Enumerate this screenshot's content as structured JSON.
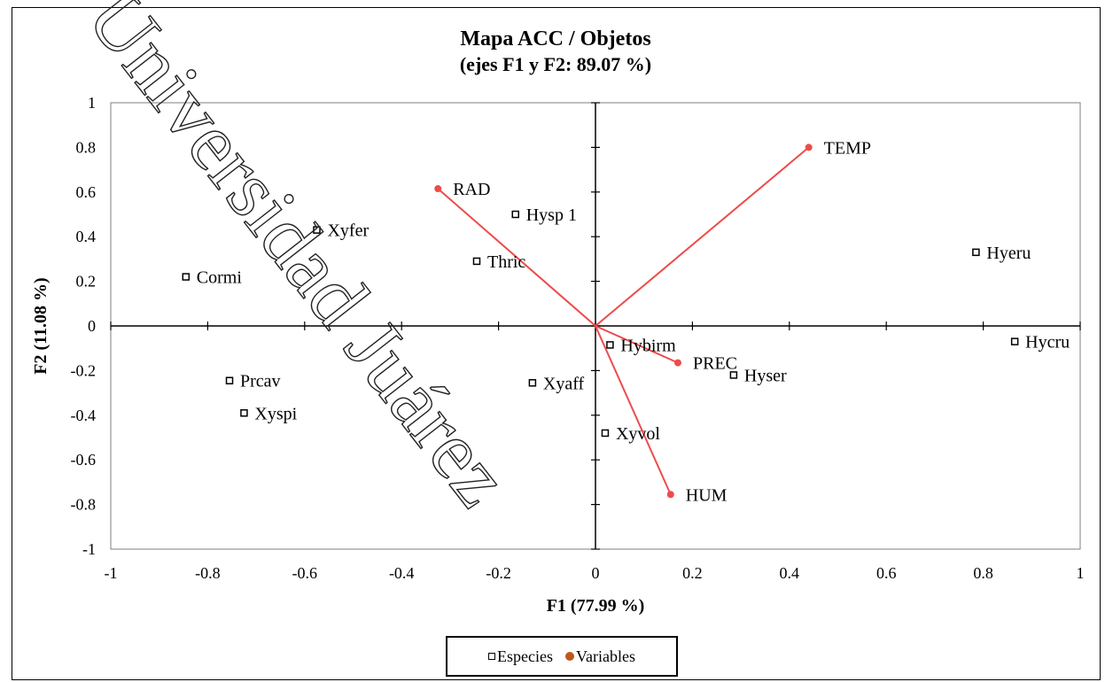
{
  "watermark": "Universidad Juárez",
  "chart_data": {
    "type": "scatter",
    "title": "Mapa ACC / Objetos",
    "subtitle": "(ejes F1 y F2: 89.07 %)",
    "xlabel": "F1 (77.99 %)",
    "ylabel": "F2 (11.08 %)",
    "xlim": [
      -1,
      1
    ],
    "ylim": [
      -1,
      1
    ],
    "x_ticks": [
      "-1",
      "-0.8",
      "-0.6",
      "-0.4",
      "-0.2",
      "0",
      "0.2",
      "0.4",
      "0.6",
      "0.8",
      "1"
    ],
    "y_ticks": [
      "1",
      "0.8",
      "0.6",
      "0.4",
      "0.2",
      "0",
      "-0.2",
      "-0.4",
      "-0.6",
      "-0.8",
      "-1"
    ],
    "legend_position": "bottom",
    "series": [
      {
        "name": "Especies",
        "marker": "square",
        "color": "#000000",
        "points": [
          {
            "label": "Xyfer",
            "x": -0.575,
            "y": 0.43
          },
          {
            "label": "Cormi",
            "x": -0.845,
            "y": 0.22
          },
          {
            "label": "Thric",
            "x": -0.245,
            "y": 0.29
          },
          {
            "label": "Hysp 1",
            "x": -0.165,
            "y": 0.5
          },
          {
            "label": "Hyeru",
            "x": 0.785,
            "y": 0.33
          },
          {
            "label": "Hycru",
            "x": 0.865,
            "y": -0.07
          },
          {
            "label": "Hybirm",
            "x": 0.03,
            "y": -0.085
          },
          {
            "label": "Hyser",
            "x": 0.285,
            "y": -0.22
          },
          {
            "label": "Prcav",
            "x": -0.755,
            "y": -0.245
          },
          {
            "label": "Xyspi",
            "x": -0.725,
            "y": -0.39
          },
          {
            "label": "Xyaff",
            "x": -0.13,
            "y": -0.255
          },
          {
            "label": "Xyvol",
            "x": 0.02,
            "y": -0.48
          }
        ]
      },
      {
        "name": "Variables",
        "marker": "circle",
        "color": "#c0561c",
        "vector_color": "#ee4b4b",
        "points": [
          {
            "label": "TEMP",
            "x": 0.44,
            "y": 0.8
          },
          {
            "label": "RAD",
            "x": -0.325,
            "y": 0.615
          },
          {
            "label": "PREC",
            "x": 0.17,
            "y": -0.165
          },
          {
            "label": "HUM",
            "x": 0.155,
            "y": -0.755
          }
        ]
      }
    ]
  }
}
